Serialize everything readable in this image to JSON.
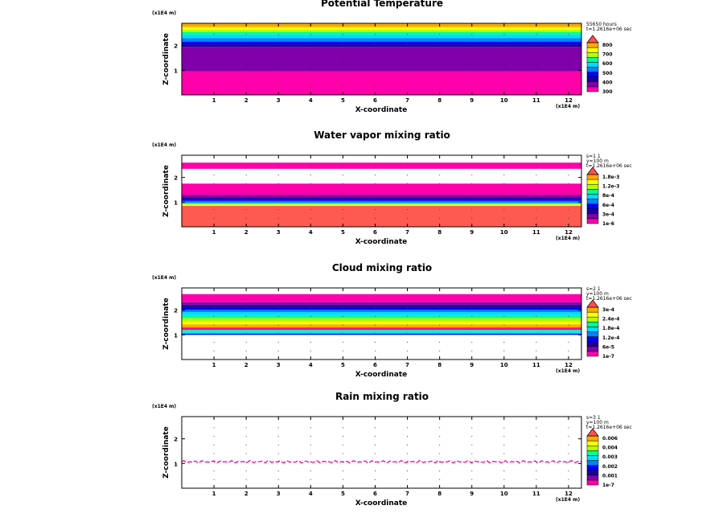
{
  "colors": {
    "magenta": "#ff00aa",
    "purple": "#8000aa",
    "darkblue": "#1e0096",
    "blue": "#0000ff",
    "lightblue": "#0082ff",
    "cyan": "#00dcff",
    "green": "#00ff96",
    "yellowgreen": "#b4ff00",
    "yellow": "#ffff00",
    "orange": "#ffaa00",
    "red": "#ff5050",
    "salmon": "#ff5a50"
  },
  "chart_data": [
    {
      "type": "heatmap",
      "title": "Potential Temperature",
      "xlabel": "X-coordinate",
      "ylabel": "Z-coordinate",
      "x_scale_label": "(x1E4 m)",
      "z_scale_label": "(x1E4 m)",
      "xlim": [
        0,
        12.4
      ],
      "ylim": [
        0,
        2.9
      ],
      "xticks": [
        "1",
        "2",
        "3",
        "4",
        "5",
        "6",
        "7",
        "8",
        "9",
        "10",
        "11",
        "12"
      ],
      "yticks": [
        "1",
        "2"
      ],
      "info": [
        "55650 hours",
        "t=1.2616e+06 sec"
      ],
      "legend_labels": [
        "800",
        "700",
        "600",
        "500",
        "400",
        "300"
      ],
      "legend_colors": [
        "#ff00aa",
        "#8000aa",
        "#1e0096",
        "#0000ff",
        "#0082ff",
        "#00dcff",
        "#00ff96",
        "#b4ff00",
        "#ffff00",
        "#ffaa00"
      ],
      "bands": [
        {
          "z0": 0.0,
          "z1": 0.95,
          "color": "#ff00aa"
        },
        {
          "z0": 0.95,
          "z1": 1.95,
          "color": "#8000aa"
        },
        {
          "z0": 1.95,
          "z1": 2.05,
          "color": "#1e0096"
        },
        {
          "z0": 2.05,
          "z1": 2.15,
          "color": "#0000ff"
        },
        {
          "z0": 2.15,
          "z1": 2.3,
          "color": "#0082ff"
        },
        {
          "z0": 2.3,
          "z1": 2.45,
          "color": "#00dcff"
        },
        {
          "z0": 2.45,
          "z1": 2.55,
          "color": "#00ff96"
        },
        {
          "z0": 2.55,
          "z1": 2.65,
          "color": "#b4ff00"
        },
        {
          "z0": 2.65,
          "z1": 2.75,
          "color": "#ffff00"
        },
        {
          "z0": 2.75,
          "z1": 2.9,
          "color": "#ffaa00"
        }
      ]
    },
    {
      "type": "heatmap",
      "title": "Water vapor mixing ratio",
      "xlabel": "X-coordinate",
      "ylabel": "Z-coordinate",
      "x_scale_label": "(x1E4 m)",
      "z_scale_label": "(x1E4 m)",
      "xlim": [
        0,
        12.4
      ],
      "ylim": [
        0,
        2.9
      ],
      "xticks": [
        "1",
        "2",
        "3",
        "4",
        "5",
        "6",
        "7",
        "8",
        "9",
        "10",
        "11",
        "12"
      ],
      "yticks": [
        "1",
        "2"
      ],
      "info": [
        "s=1 1",
        "y=100 m",
        "t=1.2616e+06 sec"
      ],
      "legend_labels": [
        "1.8e-3",
        "1.2e-3",
        "8e-4",
        "6e-4",
        "3e-4",
        "1e-6"
      ],
      "legend_colors": [
        "#ff00aa",
        "#8000aa",
        "#1e0096",
        "#0000ff",
        "#0082ff",
        "#00dcff",
        "#00ff96",
        "#b4ff00",
        "#ffff00",
        "#ffaa00"
      ],
      "bands": [
        {
          "z0": 0.0,
          "z1": 0.85,
          "color": "#ff5a50"
        },
        {
          "z0": 0.85,
          "z1": 0.92,
          "color": "#ffff00"
        },
        {
          "z0": 0.92,
          "z1": 0.98,
          "color": "#00ff96"
        },
        {
          "z0": 0.98,
          "z1": 1.05,
          "color": "#0082ff"
        },
        {
          "z0": 1.05,
          "z1": 1.12,
          "color": "#0000ff"
        },
        {
          "z0": 1.12,
          "z1": 1.2,
          "color": "#1e0096"
        },
        {
          "z0": 1.2,
          "z1": 1.3,
          "color": "#8000aa"
        },
        {
          "z0": 1.3,
          "z1": 1.75,
          "color": "#ff00aa"
        },
        {
          "z0": 2.35,
          "z1": 2.6,
          "color": "#ff00aa"
        }
      ]
    },
    {
      "type": "heatmap",
      "title": "Cloud mixing ratio",
      "xlabel": "X-coordinate",
      "ylabel": "Z-coordinate",
      "x_scale_label": "(x1E4 m)",
      "z_scale_label": "(x1E4 m)",
      "xlim": [
        0,
        12.4
      ],
      "ylim": [
        0,
        2.9
      ],
      "xticks": [
        "1",
        "2",
        "3",
        "4",
        "5",
        "6",
        "7",
        "8",
        "9",
        "10",
        "11",
        "12"
      ],
      "yticks": [
        "1",
        "2"
      ],
      "info": [
        "s=2 1",
        "y=100 m",
        "t=1.2616e+06 sec"
      ],
      "legend_labels": [
        "3e-4",
        "2.4e-4",
        "1.8e-4",
        "1.2e-4",
        "6e-5",
        "1e-7"
      ],
      "legend_colors": [
        "#ff00aa",
        "#8000aa",
        "#1e0096",
        "#0000ff",
        "#0082ff",
        "#00dcff",
        "#00ff96",
        "#b4ff00",
        "#ffff00",
        "#ffaa00"
      ],
      "bands": [
        {
          "z0": 1.0,
          "z1": 1.05,
          "color": "#0000ff"
        },
        {
          "z0": 1.05,
          "z1": 1.12,
          "color": "#00dcff"
        },
        {
          "z0": 1.12,
          "z1": 1.2,
          "color": "#00ff96"
        },
        {
          "z0": 1.2,
          "z1": 1.3,
          "color": "#ff00aa"
        },
        {
          "z0": 1.3,
          "z1": 1.42,
          "color": "#ffaa00"
        },
        {
          "z0": 1.42,
          "z1": 1.55,
          "color": "#ffff00"
        },
        {
          "z0": 1.55,
          "z1": 1.68,
          "color": "#b4ff00"
        },
        {
          "z0": 1.68,
          "z1": 1.8,
          "color": "#00ff96"
        },
        {
          "z0": 1.8,
          "z1": 1.92,
          "color": "#00dcff"
        },
        {
          "z0": 1.92,
          "z1": 2.02,
          "color": "#0082ff"
        },
        {
          "z0": 2.02,
          "z1": 2.12,
          "color": "#0000ff"
        },
        {
          "z0": 2.12,
          "z1": 2.22,
          "color": "#1e0096"
        },
        {
          "z0": 2.22,
          "z1": 2.32,
          "color": "#8000aa"
        },
        {
          "z0": 2.32,
          "z1": 2.65,
          "color": "#ff00aa"
        }
      ]
    },
    {
      "type": "heatmap",
      "title": "Rain mixing ratio",
      "xlabel": "X-coordinate",
      "ylabel": "Z-coordinate",
      "x_scale_label": "(x1E4 m)",
      "z_scale_label": "(x1E4 m)",
      "xlim": [
        0,
        12.4
      ],
      "ylim": [
        0,
        2.9
      ],
      "xticks": [
        "1",
        "2",
        "3",
        "4",
        "5",
        "6",
        "7",
        "8",
        "9",
        "10",
        "11",
        "12"
      ],
      "yticks": [
        "1",
        "2"
      ],
      "info": [
        "s=3 1",
        "y=100 m",
        "t=1.2616e+06 sec"
      ],
      "legend_labels": [
        "0.006",
        "0.004",
        "0.003",
        "0.002",
        "0.001",
        "1e-7"
      ],
      "legend_colors": [
        "#ff00aa",
        "#8000aa",
        "#1e0096",
        "#0000ff",
        "#0082ff",
        "#00dcff",
        "#00ff96",
        "#b4ff00",
        "#ffff00",
        "#ffaa00"
      ],
      "bands": [],
      "rain_line_z": 1.07
    }
  ]
}
